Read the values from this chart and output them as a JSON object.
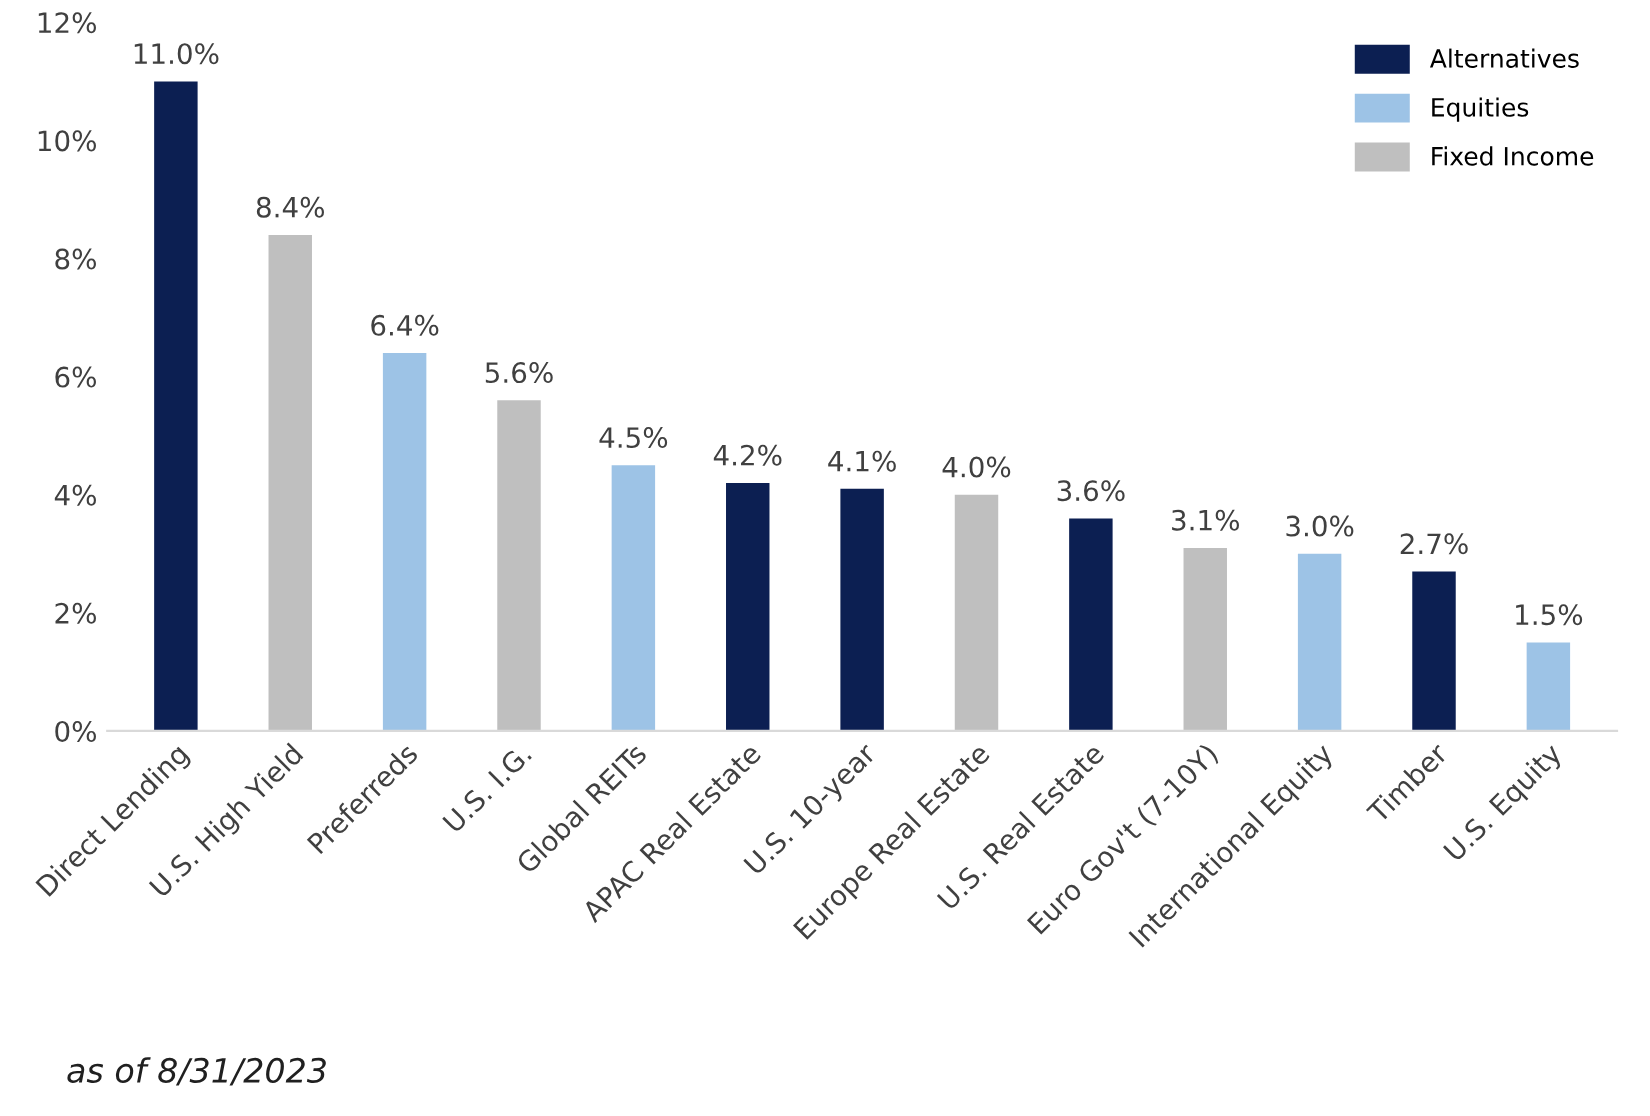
{
  "chart_data": {
    "type": "bar",
    "legend": "top right",
    "grid": false,
    "categories": [
      "Direct Lending",
      "U.S. High Yield",
      "Preferreds",
      "U.S. I.G.",
      "Global REITs",
      "APAC Real Estate",
      "U.S. 10-year",
      "Europe Real Estate",
      "U.S. Real Estate",
      "Euro Gov't (7-10Y)",
      "International Equity",
      "Timber",
      "U.S. Equity"
    ],
    "series": [
      {
        "name": "Alternatives",
        "color": "#0c1f52",
        "values": [
          11.0,
          null,
          null,
          null,
          null,
          4.2,
          4.1,
          null,
          3.6,
          null,
          null,
          2.7,
          null
        ],
        "value_labels": [
          "11.0%",
          null,
          null,
          null,
          null,
          "4.2%",
          "4.1%",
          null,
          "3.6%",
          null,
          null,
          "2.7%",
          null
        ]
      },
      {
        "name": "Equities",
        "color": "#9dc3e6",
        "values": [
          null,
          null,
          6.4,
          null,
          4.5,
          null,
          null,
          null,
          null,
          null,
          3.0,
          null,
          1.5
        ],
        "value_labels": [
          null,
          null,
          "6.4%",
          null,
          "4.5%",
          null,
          null,
          null,
          null,
          null,
          "3.0%",
          null,
          "1.5%"
        ]
      },
      {
        "name": "Fixed Income",
        "color": "#bfbfbf",
        "values": [
          null,
          8.4,
          null,
          5.6,
          null,
          null,
          null,
          4.0,
          null,
          3.1,
          null,
          null,
          null
        ],
        "value_labels": [
          null,
          "8.4%",
          null,
          "5.6%",
          null,
          null,
          null,
          "4.0%",
          null,
          "3.1%",
          null,
          null,
          null
        ]
      }
    ],
    "ylim": [
      0,
      12
    ],
    "yticks": [
      {
        "value": 0,
        "label": "0%"
      },
      {
        "value": 2,
        "label": "2%"
      },
      {
        "value": 4,
        "label": "4%"
      },
      {
        "value": 6,
        "label": "6%"
      },
      {
        "value": 8,
        "label": "8%"
      },
      {
        "value": 10,
        "label": "10%"
      },
      {
        "value": 12,
        "label": "12%"
      }
    ],
    "annotations": [
      "as of 8/31/2023"
    ]
  }
}
